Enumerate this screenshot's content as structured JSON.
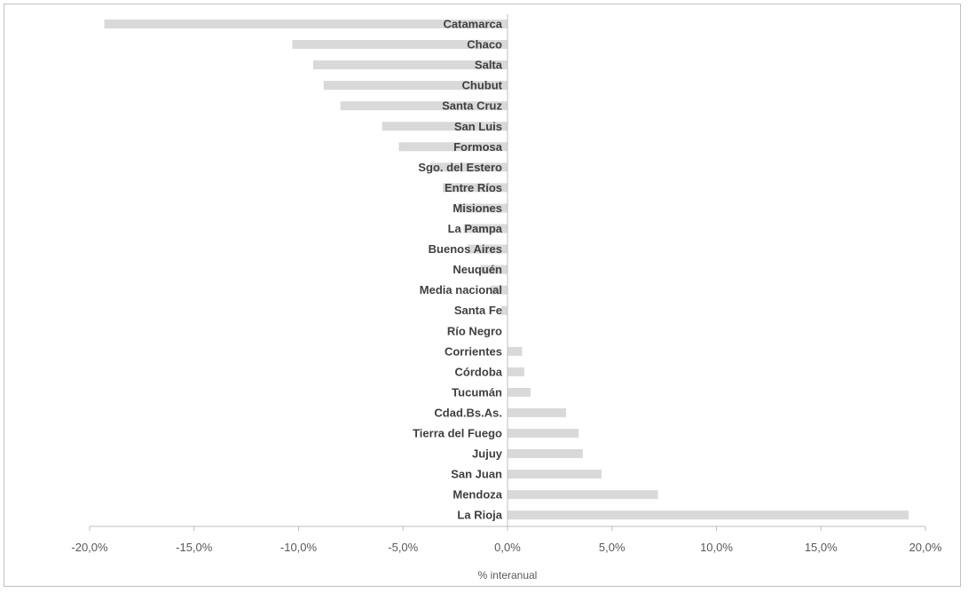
{
  "chart_data": {
    "type": "bar",
    "orientation": "horizontal",
    "categories": [
      "Catamarca",
      "Chaco",
      "Salta",
      "Chubut",
      "Santa Cruz",
      "San Luis",
      "Formosa",
      "Sgo. del Estero",
      "Entre Ríos",
      "Misiones",
      "La Pampa",
      "Buenos Aires",
      "Neuquén",
      "Media nacional",
      "Santa Fe",
      "Río Negro",
      "Corrientes",
      "Córdoba",
      "Tucumán",
      "Cdad.Bs.As.",
      "Tierra del Fuego",
      "Jujuy",
      "San Juan",
      "Mendoza",
      "La Rioja"
    ],
    "values": [
      -19.3,
      -10.3,
      -9.3,
      -8.8,
      -8.0,
      -6.0,
      -5.2,
      -3.7,
      -3.1,
      -2.4,
      -2.1,
      -1.9,
      -1.3,
      -0.8,
      -0.3,
      0.0,
      0.7,
      0.8,
      1.1,
      2.8,
      3.4,
      3.6,
      4.5,
      7.2,
      19.2
    ],
    "xlabel": "% interanual",
    "xlim": [
      -20,
      20
    ],
    "xticks": [
      -20,
      -15,
      -10,
      -5,
      0,
      5,
      10,
      15,
      20
    ],
    "xtick_labels": [
      "-20,0%",
      "-15,0%",
      "-10,0%",
      "-5,0%",
      "0,0%",
      "5,0%",
      "10,0%",
      "15,0%",
      "20,0%"
    ],
    "bar_color": "#d9d9d9",
    "axis_color": "#bfbfbf",
    "grid": false,
    "legend": "none"
  }
}
